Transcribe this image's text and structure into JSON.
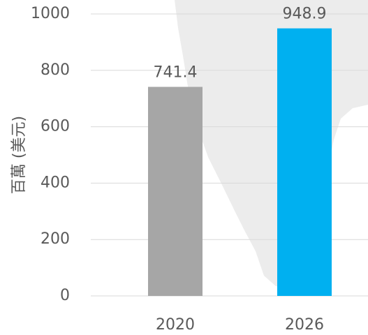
{
  "chart_data": {
    "type": "bar",
    "y_label": "百萬 (美元)",
    "categories": [
      "2020",
      "2026"
    ],
    "values": [
      741.4,
      948.9
    ],
    "colors": [
      "#a6a6a6",
      "#00b0f0"
    ],
    "ylim": [
      0,
      1000
    ],
    "yticks": [
      0,
      200,
      400,
      600,
      800,
      1000
    ],
    "grid": true
  }
}
